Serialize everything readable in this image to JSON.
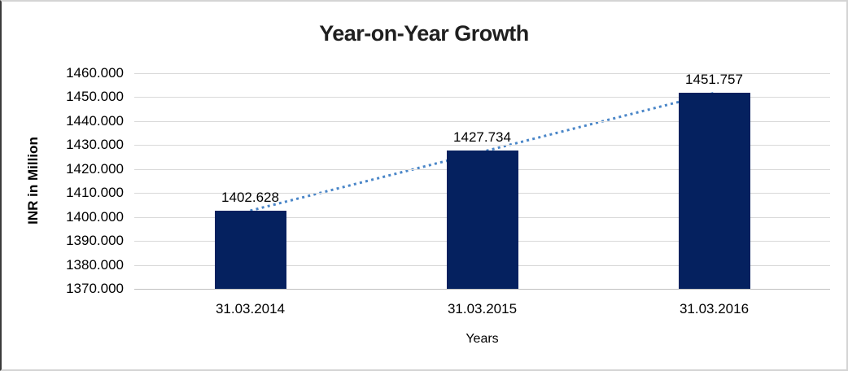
{
  "chart_data": {
    "type": "bar",
    "title": "Year-on-Year Growth",
    "categories": [
      "31.03.2014",
      "31.03.2015",
      "31.03.2016"
    ],
    "series": [
      {
        "name": "INR in Million",
        "values": [
          1402.628,
          1427.734,
          1451.757
        ]
      }
    ],
    "value_labels": [
      "1402.628",
      "1427.734",
      "1451.757"
    ],
    "xlabel": "Years",
    "ylabel": "INR in Million",
    "ylim": [
      1370,
      1460
    ],
    "ytick_step": 10,
    "yticks": [
      "1460.000",
      "1450.000",
      "1440.000",
      "1430.000",
      "1420.000",
      "1410.000",
      "1400.000",
      "1390.000",
      "1380.000",
      "1370.000"
    ],
    "grid": true,
    "legend_position": "none",
    "trendline": {
      "type": "linear",
      "style": "dotted"
    },
    "colors": {
      "bar": "#05215f",
      "trendline": "#4a86c8",
      "gridline": "#d9d9d9",
      "axis_line": "#bfbfbf",
      "text": "#000000"
    }
  }
}
